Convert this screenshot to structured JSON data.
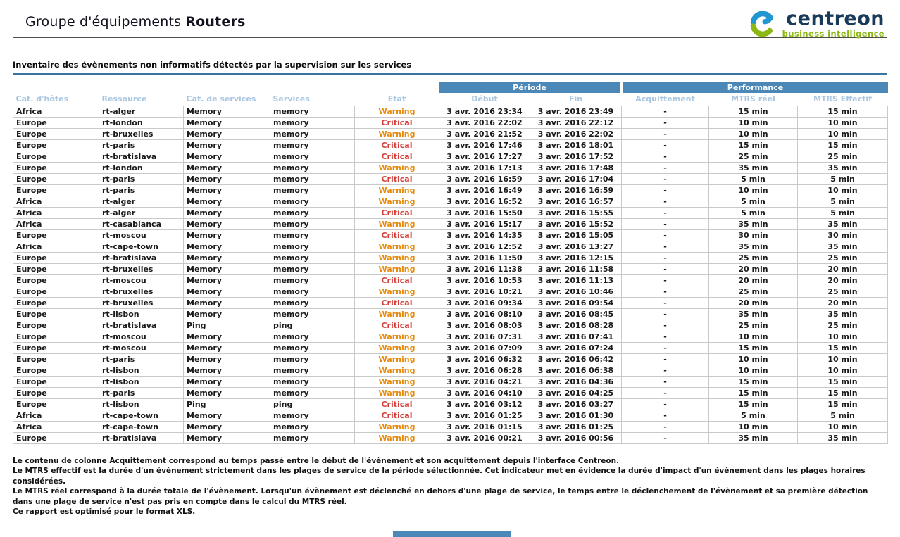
{
  "header": {
    "title_prefix": "Groupe d'équipements",
    "title_group": "Routers"
  },
  "logo": {
    "brand": "centreon",
    "tagline": "business intelligence"
  },
  "section": {
    "title": "Inventaire des évènements non informatifs détectés par la supervision sur les services"
  },
  "table": {
    "groups": {
      "periode": "Période",
      "performance": "Performance"
    },
    "columns": [
      "Cat. d'hôtes",
      "Ressource",
      "Cat. de services",
      "Services",
      "Etat",
      "Début",
      "Fin",
      "Acquittement",
      "MTRS réel",
      "MTRS Effectif"
    ],
    "rows": [
      [
        "Africa",
        "rt-alger",
        "Memory",
        "memory",
        "Warning",
        "3 avr. 2016 23:34",
        "3 avr. 2016 23:49",
        "-",
        "15 min",
        "15 min"
      ],
      [
        "Europe",
        "rt-london",
        "Memory",
        "memory",
        "Critical",
        "3 avr. 2016 22:02",
        "3 avr. 2016 22:12",
        "-",
        "10 min",
        "10 min"
      ],
      [
        "Europe",
        "rt-bruxelles",
        "Memory",
        "memory",
        "Warning",
        "3 avr. 2016 21:52",
        "3 avr. 2016 22:02",
        "-",
        "10 min",
        "10 min"
      ],
      [
        "Europe",
        "rt-paris",
        "Memory",
        "memory",
        "Critical",
        "3 avr. 2016 17:46",
        "3 avr. 2016 18:01",
        "-",
        "15 min",
        "15 min"
      ],
      [
        "Europe",
        "rt-bratislava",
        "Memory",
        "memory",
        "Critical",
        "3 avr. 2016 17:27",
        "3 avr. 2016 17:52",
        "-",
        "25 min",
        "25 min"
      ],
      [
        "Europe",
        "rt-london",
        "Memory",
        "memory",
        "Warning",
        "3 avr. 2016 17:13",
        "3 avr. 2016 17:48",
        "-",
        "35 min",
        "35 min"
      ],
      [
        "Europe",
        "rt-paris",
        "Memory",
        "memory",
        "Critical",
        "3 avr. 2016 16:59",
        "3 avr. 2016 17:04",
        "-",
        "5 min",
        "5 min"
      ],
      [
        "Europe",
        "rt-paris",
        "Memory",
        "memory",
        "Warning",
        "3 avr. 2016 16:49",
        "3 avr. 2016 16:59",
        "-",
        "10 min",
        "10 min"
      ],
      [
        "Africa",
        "rt-alger",
        "Memory",
        "memory",
        "Warning",
        "3 avr. 2016 16:52",
        "3 avr. 2016 16:57",
        "-",
        "5 min",
        "5 min"
      ],
      [
        "Africa",
        "rt-alger",
        "Memory",
        "memory",
        "Critical",
        "3 avr. 2016 15:50",
        "3 avr. 2016 15:55",
        "-",
        "5 min",
        "5 min"
      ],
      [
        "Africa",
        "rt-casablanca",
        "Memory",
        "memory",
        "Warning",
        "3 avr. 2016 15:17",
        "3 avr. 2016 15:52",
        "-",
        "35 min",
        "35 min"
      ],
      [
        "Europe",
        "rt-moscou",
        "Memory",
        "memory",
        "Critical",
        "3 avr. 2016 14:35",
        "3 avr. 2016 15:05",
        "-",
        "30 min",
        "30 min"
      ],
      [
        "Africa",
        "rt-cape-town",
        "Memory",
        "memory",
        "Warning",
        "3 avr. 2016 12:52",
        "3 avr. 2016 13:27",
        "-",
        "35 min",
        "35 min"
      ],
      [
        "Europe",
        "rt-bratislava",
        "Memory",
        "memory",
        "Warning",
        "3 avr. 2016 11:50",
        "3 avr. 2016 12:15",
        "-",
        "25 min",
        "25 min"
      ],
      [
        "Europe",
        "rt-bruxelles",
        "Memory",
        "memory",
        "Warning",
        "3 avr. 2016 11:38",
        "3 avr. 2016 11:58",
        "-",
        "20 min",
        "20 min"
      ],
      [
        "Europe",
        "rt-moscou",
        "Memory",
        "memory",
        "Critical",
        "3 avr. 2016 10:53",
        "3 avr. 2016 11:13",
        "-",
        "20 min",
        "20 min"
      ],
      [
        "Europe",
        "rt-bruxelles",
        "Memory",
        "memory",
        "Warning",
        "3 avr. 2016 10:21",
        "3 avr. 2016 10:46",
        "-",
        "25 min",
        "25 min"
      ],
      [
        "Europe",
        "rt-bruxelles",
        "Memory",
        "memory",
        "Critical",
        "3 avr. 2016 09:34",
        "3 avr. 2016 09:54",
        "-",
        "20 min",
        "20 min"
      ],
      [
        "Europe",
        "rt-lisbon",
        "Memory",
        "memory",
        "Warning",
        "3 avr. 2016 08:10",
        "3 avr. 2016 08:45",
        "-",
        "35 min",
        "35 min"
      ],
      [
        "Europe",
        "rt-bratislava",
        "Ping",
        "ping",
        "Critical",
        "3 avr. 2016 08:03",
        "3 avr. 2016 08:28",
        "-",
        "25 min",
        "25 min"
      ],
      [
        "Europe",
        "rt-moscou",
        "Memory",
        "memory",
        "Warning",
        "3 avr. 2016 07:31",
        "3 avr. 2016 07:41",
        "-",
        "10 min",
        "10 min"
      ],
      [
        "Europe",
        "rt-moscou",
        "Memory",
        "memory",
        "Warning",
        "3 avr. 2016 07:09",
        "3 avr. 2016 07:24",
        "-",
        "15 min",
        "15 min"
      ],
      [
        "Europe",
        "rt-paris",
        "Memory",
        "memory",
        "Warning",
        "3 avr. 2016 06:32",
        "3 avr. 2016 06:42",
        "-",
        "10 min",
        "10 min"
      ],
      [
        "Europe",
        "rt-lisbon",
        "Memory",
        "memory",
        "Warning",
        "3 avr. 2016 06:28",
        "3 avr. 2016 06:38",
        "-",
        "10 min",
        "10 min"
      ],
      [
        "Europe",
        "rt-lisbon",
        "Memory",
        "memory",
        "Warning",
        "3 avr. 2016 04:21",
        "3 avr. 2016 04:36",
        "-",
        "15 min",
        "15 min"
      ],
      [
        "Europe",
        "rt-paris",
        "Memory",
        "memory",
        "Warning",
        "3 avr. 2016 04:10",
        "3 avr. 2016 04:25",
        "-",
        "15 min",
        "15 min"
      ],
      [
        "Europe",
        "rt-lisbon",
        "Ping",
        "ping",
        "Critical",
        "3 avr. 2016 03:12",
        "3 avr. 2016 03:27",
        "-",
        "15 min",
        "15 min"
      ],
      [
        "Africa",
        "rt-cape-town",
        "Memory",
        "memory",
        "Critical",
        "3 avr. 2016 01:25",
        "3 avr. 2016 01:30",
        "-",
        "5 min",
        "5 min"
      ],
      [
        "Africa",
        "rt-cape-town",
        "Memory",
        "memory",
        "Warning",
        "3 avr. 2016 01:15",
        "3 avr. 2016 01:25",
        "-",
        "10 min",
        "10 min"
      ],
      [
        "Europe",
        "rt-bratislava",
        "Memory",
        "memory",
        "Warning",
        "3 avr. 2016 00:21",
        "3 avr. 2016 00:56",
        "-",
        "35 min",
        "35 min"
      ]
    ]
  },
  "footer": {
    "lines": [
      "Le contenu de colonne Acquittement correspond au temps passé entre le début de l'évènement et son acquittement depuis l'interface Centreon.",
      "Le MTRS effectif est la durée d'un évènement strictement dans les plages de service de la période sélectionnée. Cet indicateur met en évidence la durée d'impact d'un évènement dans les plages horaires considérées.",
      "Le MTRS réel correspond à la durée totale de l'évènement. Lorsqu'un évènement est déclenché en dehors d'une plage de service, le temps entre le déclenchement de l'évènement et sa première détection dans une plage de service n'est pas pris en compte dans le calcul du MTRS réel.",
      "Ce rapport est optimisé pour le format XLS."
    ]
  },
  "colors": {
    "group_bar": "#4b87b7",
    "column_header_text": "#a9c6e0",
    "section_rule": "#38759f",
    "warning": "#e78a0c",
    "critical": "#d23f3a",
    "logo_blue": "#2196d1",
    "logo_green": "#8db814",
    "brand_navy": "#1a3a5c"
  }
}
